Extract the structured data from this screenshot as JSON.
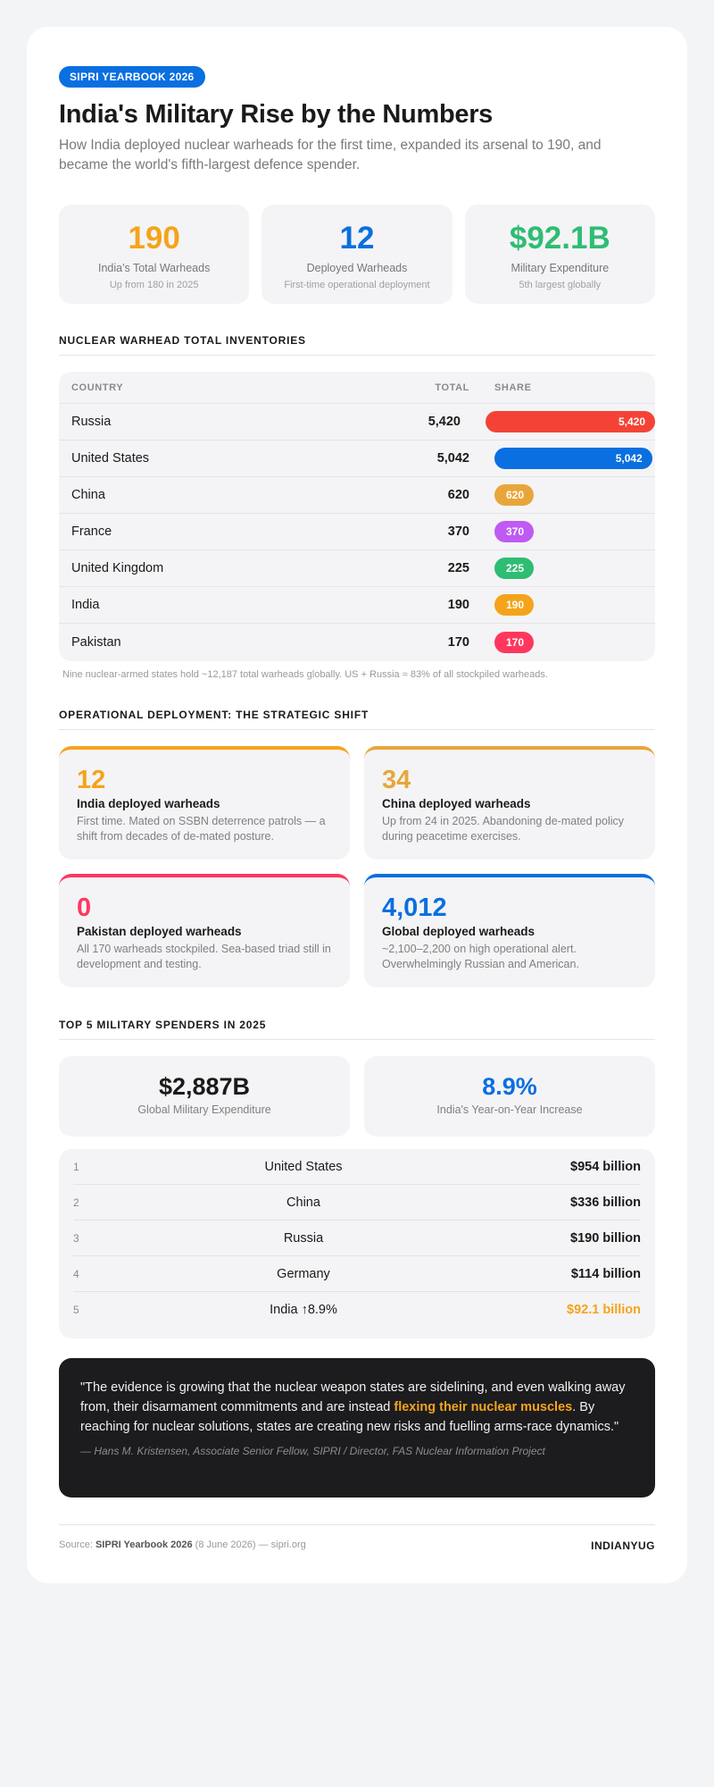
{
  "header": {
    "badge": "SIPRI YEARBOOK 2026",
    "title": "India's Military Rise by the Numbers",
    "subtitle": "How India deployed nuclear warheads for the first time, expanded its arsenal to 190, and became the world's fifth-largest defence spender."
  },
  "stats": [
    {
      "value": "190",
      "label": "India's Total Warheads",
      "sub": "Up from 180 in 2025",
      "color": "#f5a31b"
    },
    {
      "value": "12",
      "label": "Deployed Warheads",
      "sub": "First-time operational deployment",
      "color": "#0a6fe0"
    },
    {
      "value": "$92.1B",
      "label": "Military Expenditure",
      "sub": "5th largest globally",
      "color": "#2ebd73"
    }
  ],
  "inventory": {
    "section_title": "NUCLEAR WARHEAD TOTAL INVENTORIES",
    "headers": {
      "country": "COUNTRY",
      "total": "TOTAL",
      "share": "SHARE"
    },
    "max": 5420,
    "rows": [
      {
        "country": "Russia",
        "total": "5,420",
        "value": 5420,
        "color": "#f44336"
      },
      {
        "country": "United States",
        "total": "5,042",
        "value": 5042,
        "color": "#0a6fe0"
      },
      {
        "country": "China",
        "total": "620",
        "value": 620,
        "color": "#e8a63a"
      },
      {
        "country": "France",
        "total": "370",
        "value": 370,
        "color": "#bf5af2"
      },
      {
        "country": "United Kingdom",
        "total": "225",
        "value": 225,
        "color": "#2ebd73"
      },
      {
        "country": "India",
        "total": "190",
        "value": 190,
        "color": "#f5a31b"
      },
      {
        "country": "Pakistan",
        "total": "170",
        "value": 170,
        "color": "#ff375f"
      }
    ],
    "note": "Nine nuclear-armed states hold ~12,187 total warheads globally. US + Russia ≈ 83% of all stockpiled warheads."
  },
  "deployment": {
    "section_title": "OPERATIONAL DEPLOYMENT: THE STRATEGIC SHIFT",
    "cards": [
      {
        "num": "12",
        "label": "India deployed warheads",
        "desc": "First time. Mated on SSBN deterrence patrols — a shift from decades of de-mated posture.",
        "color": "#f5a31b"
      },
      {
        "num": "34",
        "label": "China deployed warheads",
        "desc": "Up from 24 in 2025. Abandoning de-mated policy during peacetime exercises.",
        "color": "#e8a63a"
      },
      {
        "num": "0",
        "label": "Pakistan deployed warheads",
        "desc": "All 170 warheads stockpiled. Sea-based triad still in development and testing.",
        "color": "#ff375f"
      },
      {
        "num": "4,012",
        "label": "Global deployed warheads",
        "desc": "~2,100–2,200 on high operational alert. Overwhelmingly Russian and American.",
        "color": "#0a6fe0"
      }
    ]
  },
  "spending": {
    "section_title": "TOP 5 MILITARY SPENDERS IN 2025",
    "stats": [
      {
        "value": "$2,887B",
        "label": "Global Military Expenditure",
        "color": "#1a1a1a"
      },
      {
        "value": "8.9%",
        "label": "India's Year-on-Year Increase",
        "color": "#0a6fe0"
      }
    ],
    "rows": [
      {
        "rank": "1",
        "country": "United States",
        "value": "$954 billion",
        "color": "#1a1a1a"
      },
      {
        "rank": "2",
        "country": "China",
        "value": "$336 billion",
        "color": "#1a1a1a"
      },
      {
        "rank": "3",
        "country": "Russia",
        "value": "$190 billion",
        "color": "#1a1a1a"
      },
      {
        "rank": "4",
        "country": "Germany",
        "value": "$114 billion",
        "color": "#1a1a1a"
      },
      {
        "rank": "5",
        "country": "India ↑8.9%",
        "value": "$92.1 billion",
        "color": "#f5a31b"
      }
    ]
  },
  "quote": {
    "text_before": "\"The evidence is growing that the nuclear weapon states are sidelining, and even walking away from, their disarmament commitments and are instead ",
    "highlight": "flexing their nuclear muscles",
    "text_after": ". By reaching for nuclear solutions, states are creating new risks and fuelling arms-race dynamics.\"",
    "author": "— Hans M. Kristensen, Associate Senior Fellow, SIPRI / Director, FAS Nuclear Information Project"
  },
  "footer": {
    "source_prefix": "Source: ",
    "source_name": "SIPRI Yearbook 2026",
    "source_suffix": " (8 June 2026) — sipri.org",
    "brand": "INDIANYUG"
  }
}
